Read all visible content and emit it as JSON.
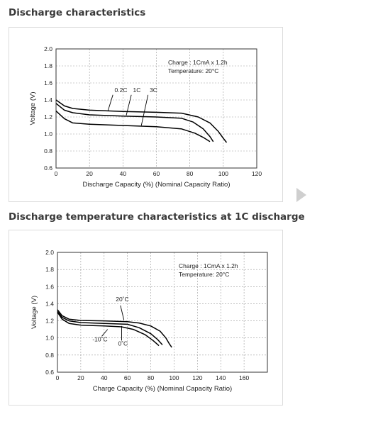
{
  "page": {
    "title1": "Discharge characteristics",
    "title2": "Discharge temperature characteristics at 1C discharge"
  },
  "icons": {
    "next": "next-arrow-icon"
  },
  "colors": {
    "line": "#000000",
    "grid": "#999999",
    "arrow": "#cfcfcf",
    "title": "#3a3a3a"
  },
  "chart_data": [
    {
      "type": "line",
      "xlabel": "Discharge Capacity (%) (Nominal Capacity Ratio)",
      "ylabel": "Voltage (V)",
      "xlim": [
        0,
        120
      ],
      "ylim": [
        0.6,
        2.0
      ],
      "xticks": [
        "0",
        "20",
        "40",
        "60",
        "80",
        "100",
        "120"
      ],
      "yticks": [
        "0.6",
        "0.8",
        "1.0",
        "1.2",
        "1.4",
        "1.6",
        "1.8",
        "2.0"
      ],
      "grid": true,
      "annotations": [
        "Charge        : 1CmA x 1.2h",
        "Temperature: 20°C"
      ],
      "series": [
        {
          "name": "0.2C",
          "label": {
            "x": 35,
            "y": 1.49
          },
          "leader": [
            [
              34,
              1.46
            ],
            [
              31,
              1.27
            ]
          ],
          "points": [
            [
              0,
              1.4
            ],
            [
              5,
              1.33
            ],
            [
              10,
              1.3
            ],
            [
              20,
              1.28
            ],
            [
              40,
              1.265
            ],
            [
              60,
              1.255
            ],
            [
              75,
              1.245
            ],
            [
              85,
              1.2
            ],
            [
              92,
              1.13
            ],
            [
              97,
              1.03
            ],
            [
              100,
              0.95
            ],
            [
              102,
              0.9
            ]
          ]
        },
        {
          "name": "1C",
          "label": {
            "x": 46,
            "y": 1.49
          },
          "leader": [
            [
              45,
              1.46
            ],
            [
              42,
              1.22
            ]
          ],
          "points": [
            [
              0,
              1.36
            ],
            [
              5,
              1.28
            ],
            [
              10,
              1.25
            ],
            [
              20,
              1.225
            ],
            [
              40,
              1.21
            ],
            [
              60,
              1.2
            ],
            [
              75,
              1.185
            ],
            [
              82,
              1.14
            ],
            [
              88,
              1.06
            ],
            [
              92,
              0.97
            ],
            [
              94,
              0.91
            ]
          ]
        },
        {
          "name": "3C",
          "label": {
            "x": 56,
            "y": 1.49
          },
          "leader": [
            [
              55,
              1.46
            ],
            [
              51,
              1.1
            ]
          ],
          "points": [
            [
              0,
              1.27
            ],
            [
              5,
              1.18
            ],
            [
              10,
              1.13
            ],
            [
              20,
              1.115
            ],
            [
              40,
              1.1
            ],
            [
              60,
              1.085
            ],
            [
              75,
              1.06
            ],
            [
              83,
              1.01
            ],
            [
              88,
              0.96
            ],
            [
              92,
              0.91
            ]
          ]
        }
      ]
    },
    {
      "type": "line",
      "xlabel": "Charge Capacity (%) (Nominal Capacity Ratio)",
      "ylabel": "Voltage (V)",
      "xlim": [
        0,
        180
      ],
      "ylim": [
        0.6,
        2.0
      ],
      "xticks": [
        "0",
        "20",
        "40",
        "60",
        "80",
        "100",
        "120",
        "140",
        "160"
      ],
      "yticks": [
        "0.6",
        "0.8",
        "1.0",
        "1.2",
        "1.4",
        "1.6",
        "1.8",
        "2.0"
      ],
      "grid": true,
      "annotations": [
        "Charge        : 1CmA x 1.2h",
        "Temperature: 20°C"
      ],
      "series": [
        {
          "name": "20˚C",
          "label": {
            "x": 50,
            "y": 1.43
          },
          "leader": [
            [
              54,
              1.38
            ],
            [
              57,
              1.21
            ]
          ],
          "points": [
            [
              0,
              1.33
            ],
            [
              4,
              1.26
            ],
            [
              10,
              1.22
            ],
            [
              20,
              1.205
            ],
            [
              40,
              1.2
            ],
            [
              60,
              1.19
            ],
            [
              70,
              1.175
            ],
            [
              80,
              1.14
            ],
            [
              88,
              1.08
            ],
            [
              93,
              1.0
            ],
            [
              96,
              0.93
            ],
            [
              98,
              0.89
            ]
          ]
        },
        {
          "name": "-10˚C",
          "label": {
            "x": 30,
            "y": 0.96
          },
          "leader": [
            [
              38,
              1.02
            ],
            [
              43,
              1.1
            ]
          ],
          "points": [
            [
              0,
              1.3
            ],
            [
              4,
              1.22
            ],
            [
              10,
              1.17
            ],
            [
              20,
              1.15
            ],
            [
              40,
              1.14
            ],
            [
              55,
              1.13
            ],
            [
              65,
              1.1
            ],
            [
              75,
              1.04
            ],
            [
              82,
              0.97
            ],
            [
              87,
              0.91
            ]
          ]
        },
        {
          "name": "0˚C",
          "label": {
            "x": 52,
            "y": 0.91
          },
          "leader": [
            [
              55,
              0.97
            ],
            [
              55,
              1.14
            ]
          ],
          "points": [
            [
              0,
              1.31
            ],
            [
              4,
              1.24
            ],
            [
              10,
              1.2
            ],
            [
              20,
              1.18
            ],
            [
              40,
              1.17
            ],
            [
              60,
              1.16
            ],
            [
              70,
              1.12
            ],
            [
              80,
              1.05
            ],
            [
              86,
              0.98
            ],
            [
              90,
              0.92
            ]
          ]
        }
      ]
    }
  ]
}
